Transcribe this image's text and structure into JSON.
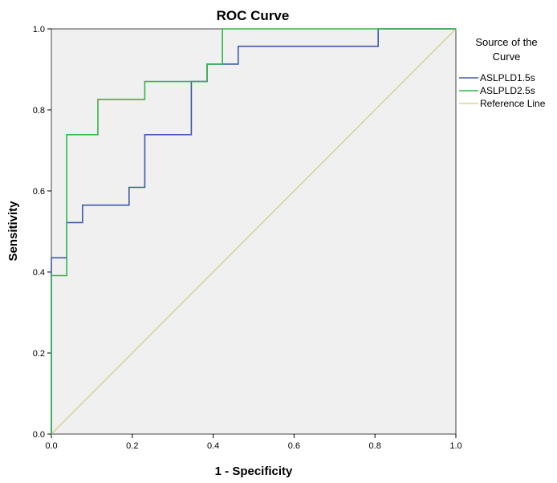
{
  "chart_data": {
    "type": "line",
    "title": "ROC Curve",
    "xlabel": "1 - Specificity",
    "ylabel": "Sensitivity",
    "xlim": [
      0,
      1
    ],
    "ylim": [
      0,
      1
    ],
    "xticks": [
      "0.0",
      "0.2",
      "0.4",
      "0.6",
      "0.8",
      "1.0"
    ],
    "yticks": [
      "0.0",
      "0.2",
      "0.4",
      "0.6",
      "0.8",
      "1.0"
    ],
    "grid": false,
    "legend": {
      "title_line1": "Source of the",
      "title_line2": "Curve",
      "position": "right"
    },
    "series": [
      {
        "name": "ASLPLD1.5s",
        "color": "#3d5aa8",
        "x": [
          0,
          0,
          0.038,
          0.038,
          0.077,
          0.077,
          0.192,
          0.192,
          0.231,
          0.231,
          0.346,
          0.346,
          0.385,
          0.385,
          0.462,
          0.462,
          0.808,
          0.808,
          1.0
        ],
        "y": [
          0,
          0.435,
          0.435,
          0.522,
          0.522,
          0.565,
          0.565,
          0.609,
          0.609,
          0.739,
          0.739,
          0.87,
          0.87,
          0.913,
          0.913,
          0.957,
          0.957,
          1.0,
          1.0
        ]
      },
      {
        "name": "ASLPLD2.5s",
        "color": "#33b54a",
        "x": [
          0,
          0,
          0.038,
          0.038,
          0.115,
          0.115,
          0.231,
          0.231,
          0.385,
          0.385,
          0.423,
          0.423,
          1.0
        ],
        "y": [
          0,
          0.391,
          0.391,
          0.739,
          0.739,
          0.826,
          0.826,
          0.87,
          0.87,
          0.913,
          0.913,
          1.0,
          1.0
        ]
      },
      {
        "name": "Reference Line",
        "color": "#d8d49a",
        "x": [
          0,
          1
        ],
        "y": [
          0,
          1
        ]
      }
    ]
  }
}
